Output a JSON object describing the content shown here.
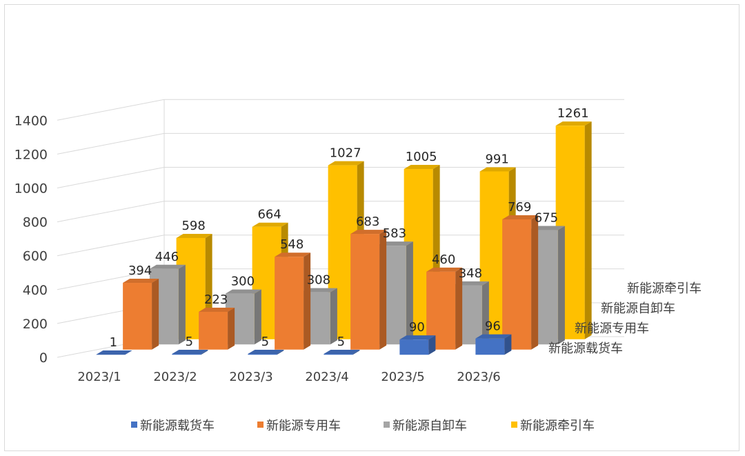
{
  "chart_data": {
    "type": "bar",
    "subtype": "3d-column",
    "categories": [
      "2023/1",
      "2023/2",
      "2023/3",
      "2023/4",
      "2023/5",
      "2023/6"
    ],
    "series": [
      {
        "name": "新能源载货车",
        "values": [
          1,
          5,
          5,
          5,
          90,
          96
        ],
        "color": "#4472C4"
      },
      {
        "name": "新能源专用车",
        "values": [
          394,
          223,
          548,
          683,
          460,
          769
        ],
        "color": "#ED7D31"
      },
      {
        "name": "新能源自卸车",
        "values": [
          446,
          300,
          308,
          583,
          348,
          675
        ],
        "color": "#A5A5A5"
      },
      {
        "name": "新能源牵引车",
        "values": [
          598,
          664,
          1027,
          1005,
          991,
          1261
        ],
        "color": "#FFC000"
      }
    ],
    "y_ticks": [
      0,
      200,
      400,
      600,
      800,
      1000,
      1200,
      1400
    ],
    "ylim": [
      0,
      1400
    ],
    "grid": true,
    "legend_position": "bottom"
  }
}
